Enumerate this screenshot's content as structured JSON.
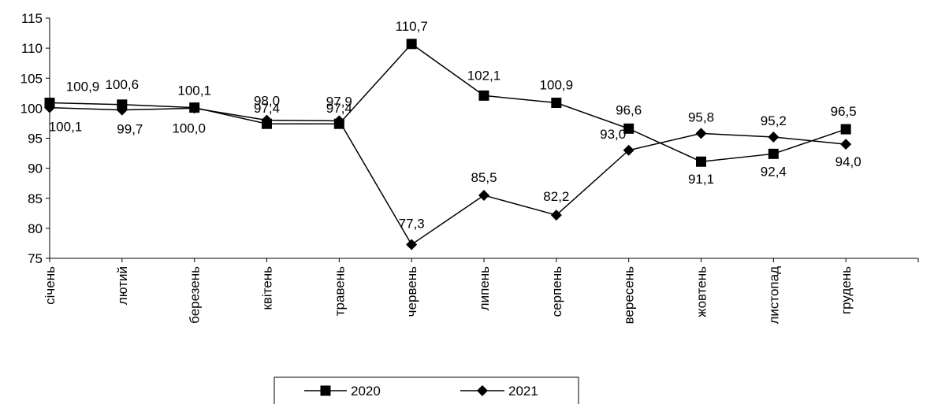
{
  "chart_data": {
    "type": "line",
    "categories": [
      "січень",
      "лютий",
      "березень",
      "квітень",
      "травень",
      "червень",
      "липень",
      "серпень",
      "вересень",
      "жовтень",
      "листопад",
      "грудень"
    ],
    "series": [
      {
        "name": "2020",
        "marker": "square",
        "values": [
          100.9,
          100.6,
          100.1,
          97.4,
          97.4,
          110.7,
          102.1,
          100.9,
          96.6,
          91.1,
          92.4,
          96.5
        ],
        "labels": [
          "100,9",
          "100,6",
          "100,1",
          "97,4",
          "97,4",
          "110,7",
          "102,1",
          "100,9",
          "96,6",
          "91,1",
          "92,4",
          "96,5"
        ]
      },
      {
        "name": "2021",
        "marker": "diamond",
        "values": [
          100.1,
          99.7,
          100.0,
          98.0,
          97.9,
          77.3,
          85.5,
          82.2,
          93.0,
          95.8,
          95.2,
          94.0
        ],
        "labels": [
          "100,1",
          "99,7",
          "100,0",
          "98,0",
          "97,9",
          "77,3",
          "85,5",
          "82,2",
          "93,0",
          "95,8",
          "95,2",
          "94,0"
        ]
      }
    ],
    "ylim": [
      75,
      115
    ],
    "yticks": [
      75,
      80,
      85,
      90,
      95,
      100,
      105,
      110,
      115
    ],
    "title": "",
    "xlabel": "",
    "ylabel": "",
    "grid": false,
    "legend_position": "bottom-center",
    "colors": {
      "line": "#000000",
      "marker": "#000000"
    }
  }
}
